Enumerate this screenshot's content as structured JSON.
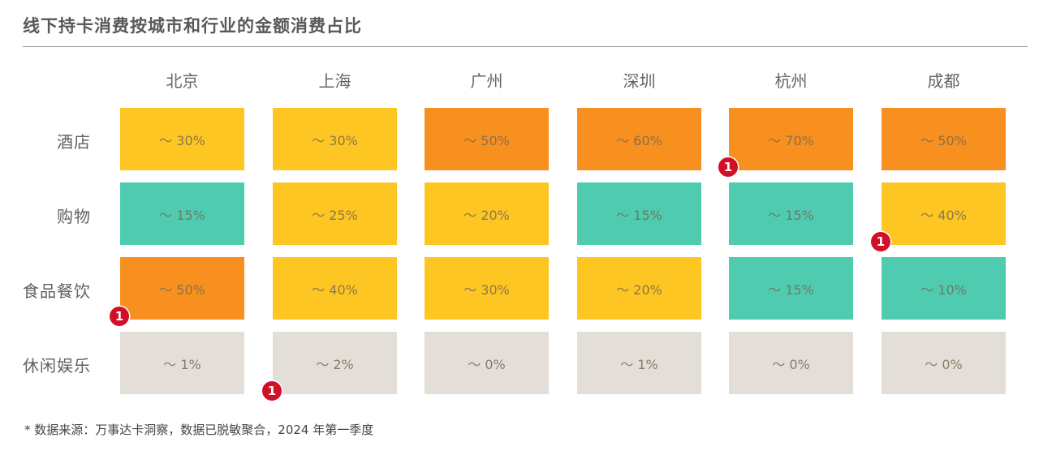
{
  "title": "线下持卡消费按城市和行业的金额消费占比",
  "colors": {
    "orange": "#F7901E",
    "yellow": "#FDC623",
    "teal": "#4FCBB0",
    "gray": "#E3DFD8",
    "badge": "#D10F27"
  },
  "chart_data": {
    "type": "heatmap",
    "title": "线下持卡消费按城市和行业的金额消费占比",
    "columns": [
      "北京",
      "上海",
      "广州",
      "深圳",
      "杭州",
      "成都"
    ],
    "rows": [
      "酒店",
      "购物",
      "食品餐饮",
      "休闲娱乐"
    ],
    "values": [
      [
        30,
        30,
        50,
        60,
        70,
        50
      ],
      [
        15,
        25,
        20,
        15,
        15,
        40
      ],
      [
        50,
        40,
        30,
        20,
        15,
        10
      ],
      [
        1,
        2,
        0,
        1,
        0,
        0
      ]
    ],
    "labels": [
      [
        "～ 30%",
        "～ 30%",
        "～ 50%",
        "～ 60%",
        "～ 70%",
        "～ 50%"
      ],
      [
        "～ 15%",
        "～ 25%",
        "～ 20%",
        "～ 15%",
        "～ 15%",
        "～ 40%"
      ],
      [
        "～ 50%",
        "～ 40%",
        "～ 30%",
        "～ 20%",
        "～ 15%",
        "～ 10%"
      ],
      [
        "～ 1%",
        "～ 2%",
        "～ 0%",
        "～ 1%",
        "～ 0%",
        "～ 0%"
      ]
    ],
    "cell_colors": [
      [
        "yellow",
        "yellow",
        "orange",
        "orange",
        "orange",
        "orange"
      ],
      [
        "teal",
        "yellow",
        "yellow",
        "teal",
        "teal",
        "yellow"
      ],
      [
        "orange",
        "yellow",
        "yellow",
        "yellow",
        "teal",
        "teal"
      ],
      [
        "gray",
        "gray",
        "gray",
        "gray",
        "gray",
        "gray"
      ]
    ],
    "markers": [
      {
        "label": "1",
        "row": 0,
        "col": 4
      },
      {
        "label": "1",
        "row": 1,
        "col": 5
      },
      {
        "label": "1",
        "row": 2,
        "col": 0
      },
      {
        "label": "1",
        "row": 3,
        "col": 1
      }
    ]
  },
  "footnote": "* 数据来源：万事达卡洞察，数据已脱敏聚合，2024 年第一季度"
}
